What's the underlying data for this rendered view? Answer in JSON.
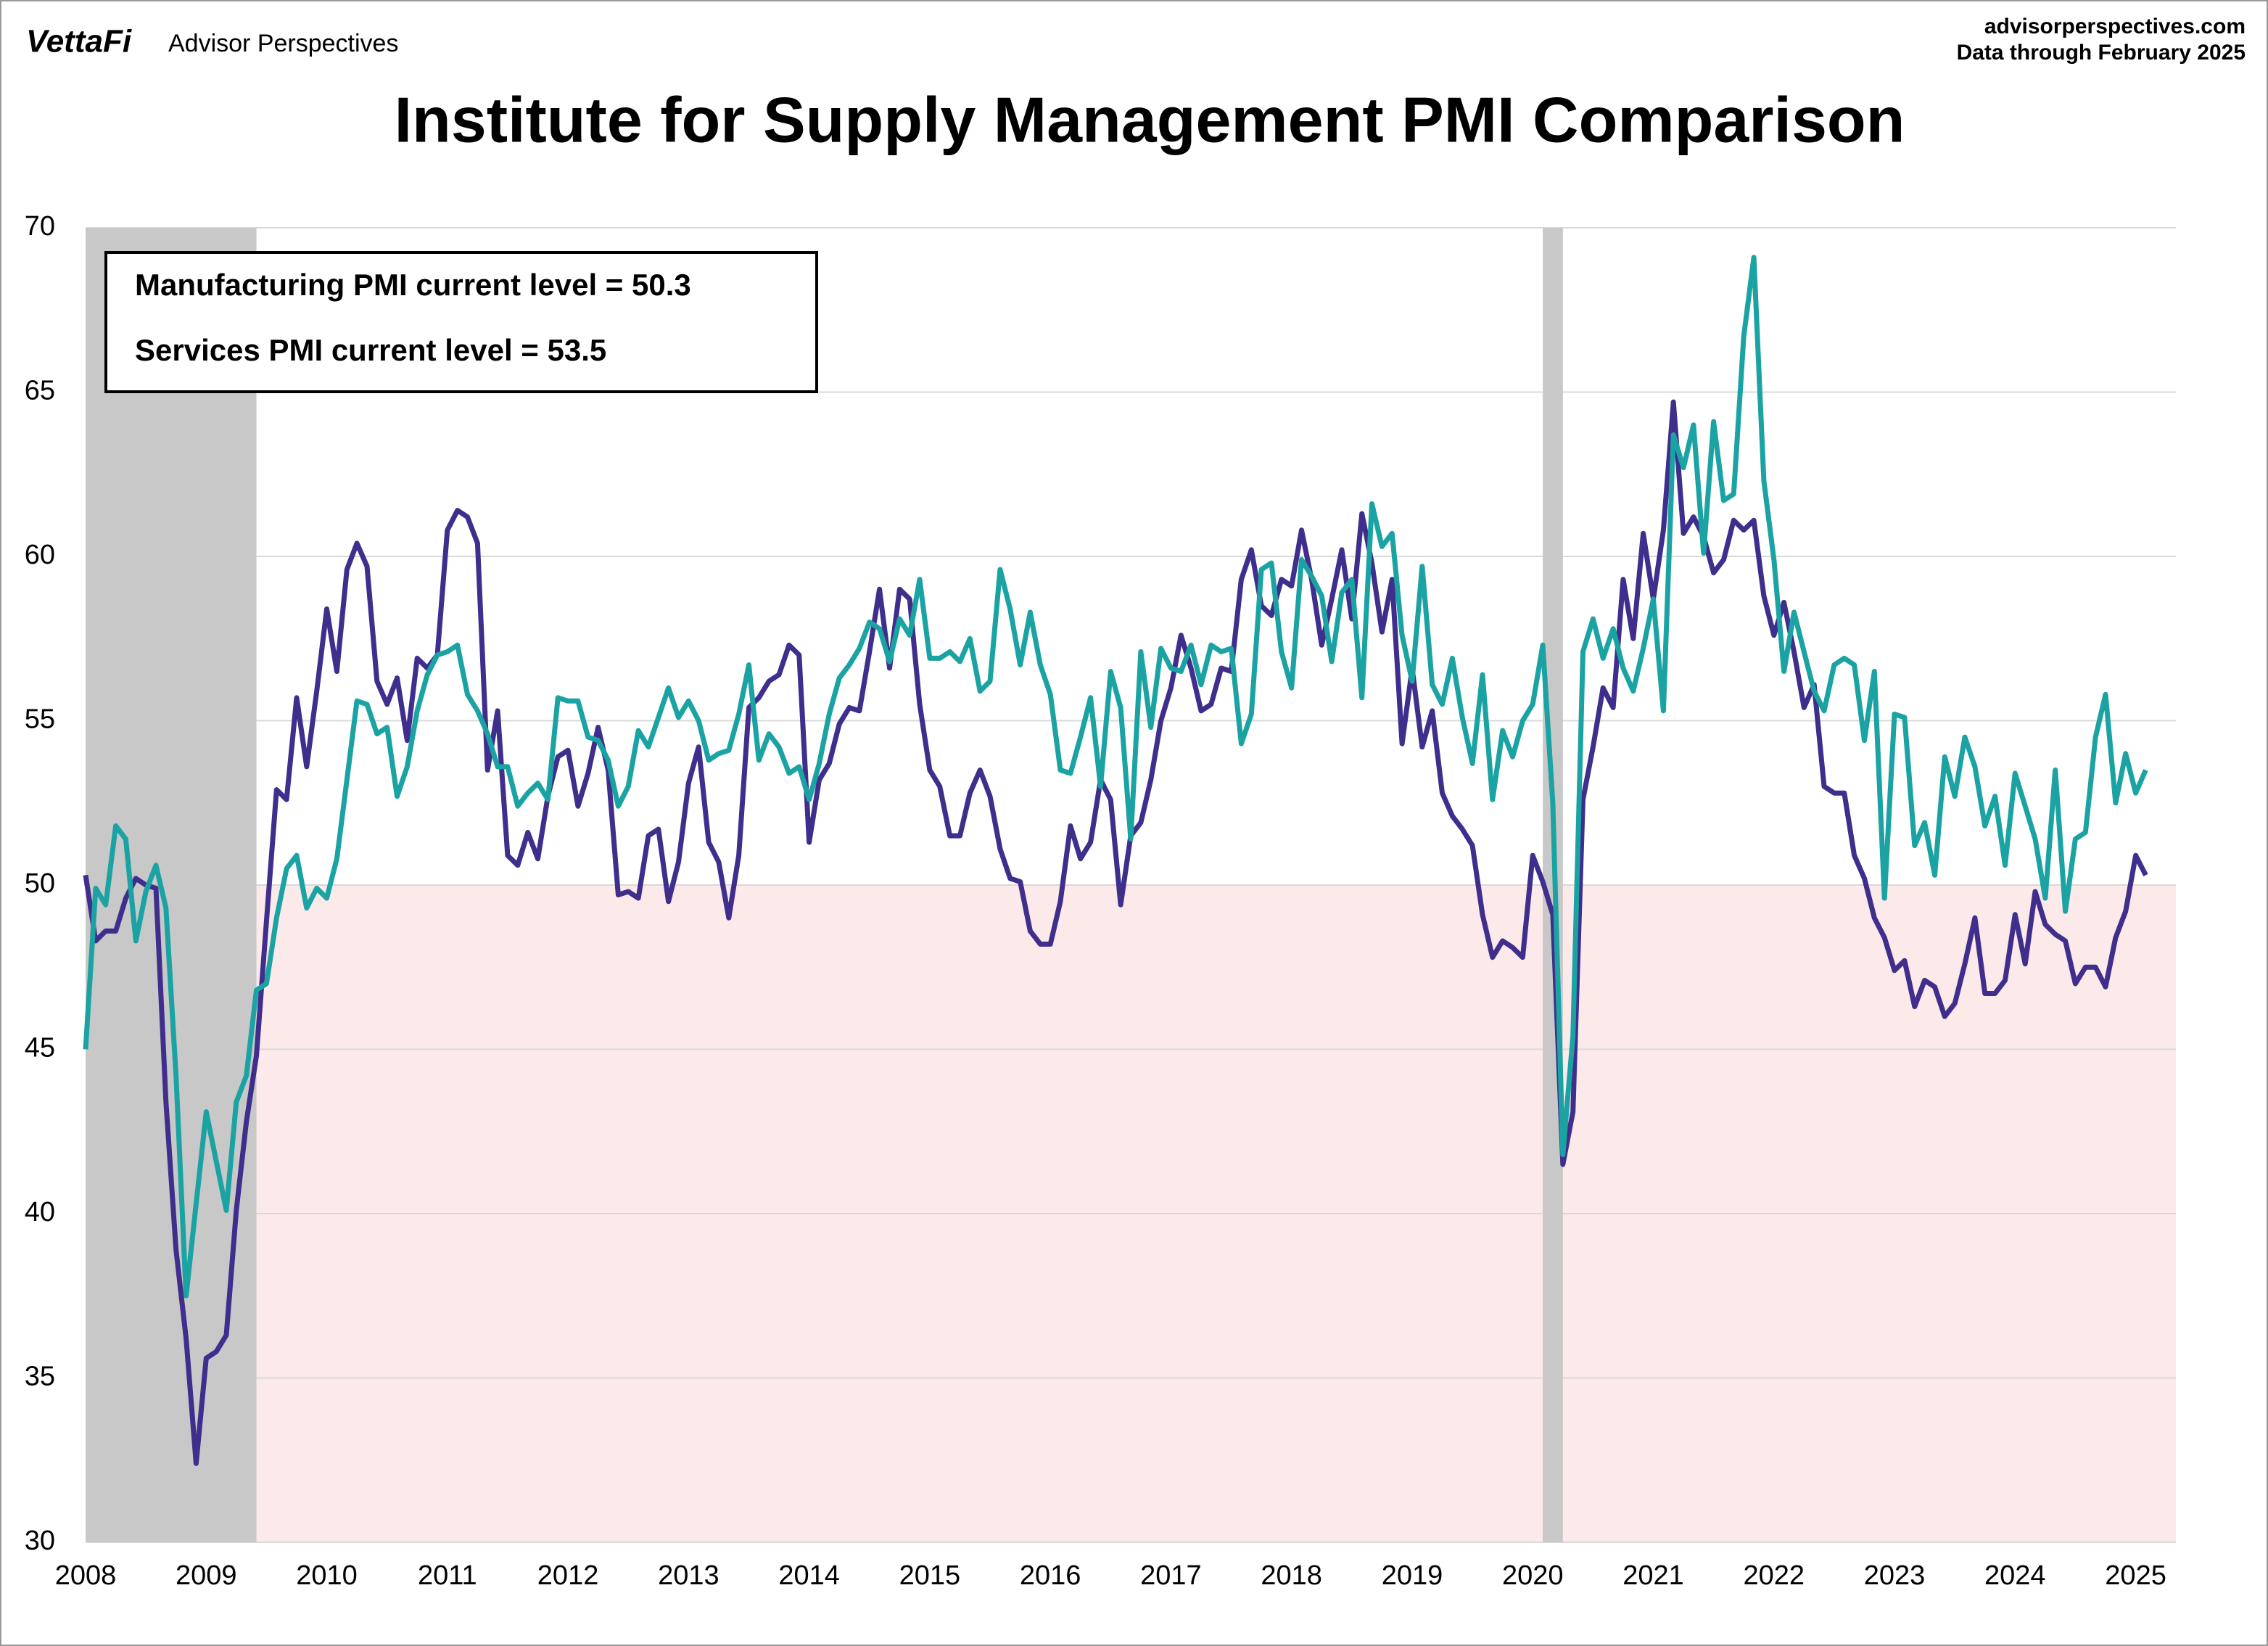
{
  "chart_data": {
    "type": "line",
    "brand": "VettaFi",
    "brand_sub": "Advisor Perspectives",
    "source": "advisorperspectives.com",
    "data_note": "Data through February 2025",
    "title": "Institute for Supply Management PMI Comparison",
    "annotations": [
      {
        "text": "Manufacturing PMI current level = 50.3",
        "color": "#3f2e8c"
      },
      {
        "text": "Services PMI current level = 53.5",
        "color": "#1ba3a3"
      }
    ],
    "categories": [
      "2008",
      null,
      null,
      null,
      null,
      null,
      null,
      null,
      null,
      null,
      null,
      null,
      "2009",
      null,
      null,
      null,
      null,
      null,
      null,
      null,
      null,
      null,
      null,
      null,
      "2010",
      null,
      null,
      null,
      null,
      null,
      null,
      null,
      null,
      null,
      null,
      null,
      "2011",
      null,
      null,
      null,
      null,
      null,
      null,
      null,
      null,
      null,
      null,
      null,
      "2012",
      null,
      null,
      null,
      null,
      null,
      null,
      null,
      null,
      null,
      null,
      null,
      "2013",
      null,
      null,
      null,
      null,
      null,
      null,
      null,
      null,
      null,
      null,
      null,
      "2014",
      null,
      null,
      null,
      null,
      null,
      null,
      null,
      null,
      null,
      null,
      null,
      "2015",
      null,
      null,
      null,
      null,
      null,
      null,
      null,
      null,
      null,
      null,
      null,
      "2016",
      null,
      null,
      null,
      null,
      null,
      null,
      null,
      null,
      null,
      null,
      null,
      "2017",
      null,
      null,
      null,
      null,
      null,
      null,
      null,
      null,
      null,
      null,
      null,
      "2018",
      null,
      null,
      null,
      null,
      null,
      null,
      null,
      null,
      null,
      null,
      null,
      "2019",
      null,
      null,
      null,
      null,
      null,
      null,
      null,
      null,
      null,
      null,
      null,
      "2020",
      null,
      null,
      null,
      null,
      null,
      null,
      null,
      null,
      null,
      null,
      null,
      "2021",
      null,
      null,
      null,
      null,
      null,
      null,
      null,
      null,
      null,
      null,
      null,
      "2022",
      null,
      null,
      null,
      null,
      null,
      null,
      null,
      null,
      null,
      null,
      null,
      "2023",
      null,
      null,
      null,
      null,
      null,
      null,
      null,
      null,
      null,
      null,
      null,
      "2024",
      null,
      null,
      null,
      null,
      null,
      null,
      null,
      null,
      null,
      null,
      null,
      "2025",
      null
    ],
    "series": [
      {
        "color": "#3f2e8c",
        "values": [
          50.3,
          48.3,
          48.6,
          48.6,
          49.6,
          50.2,
          50.0,
          49.9,
          43.4,
          38.9,
          36.2,
          32.4,
          35.6,
          35.8,
          36.3,
          40.1,
          42.8,
          44.8,
          48.9,
          52.9,
          52.6,
          55.7,
          53.6,
          55.9,
          58.4,
          56.5,
          59.6,
          60.4,
          59.7,
          56.2,
          55.5,
          56.3,
          54.4,
          56.9,
          56.6,
          57.0,
          60.8,
          61.4,
          61.2,
          60.4,
          53.5,
          55.3,
          50.9,
          50.6,
          51.6,
          50.8,
          52.7,
          53.9,
          54.1,
          52.4,
          53.4,
          54.8,
          53.5,
          49.7,
          49.8,
          49.6,
          51.5,
          51.7,
          49.5,
          50.7,
          53.1,
          54.2,
          51.3,
          50.7,
          49.0,
          50.9,
          55.4,
          55.7,
          56.2,
          56.4,
          57.3,
          57.0,
          51.3,
          53.2,
          53.7,
          54.9,
          55.4,
          55.3,
          57.1,
          59.0,
          56.6,
          59.0,
          58.7,
          55.5,
          53.5,
          53.0,
          51.5,
          51.5,
          52.8,
          53.5,
          52.7,
          51.1,
          50.2,
          50.1,
          48.6,
          48.2,
          48.2,
          49.5,
          51.8,
          50.8,
          51.3,
          53.2,
          52.6,
          49.4,
          51.5,
          51.9,
          53.2,
          55.0,
          56.0,
          57.6,
          56.6,
          55.3,
          55.5,
          56.6,
          56.5,
          59.3,
          60.2,
          58.5,
          58.2,
          59.3,
          59.1,
          60.8,
          59.3,
          57.3,
          58.7,
          60.2,
          58.1,
          61.3,
          59.8,
          57.7,
          59.3,
          54.3,
          56.6,
          54.2,
          55.3,
          52.8,
          52.1,
          51.7,
          51.2,
          49.1,
          47.8,
          48.3,
          48.1,
          47.8,
          50.9,
          50.1,
          49.1,
          41.5,
          43.1,
          52.6,
          54.2,
          56.0,
          55.4,
          59.3,
          57.5,
          60.7,
          58.7,
          60.8,
          64.7,
          60.7,
          61.2,
          60.6,
          59.5,
          59.9,
          61.1,
          60.8,
          61.1,
          58.8,
          57.6,
          58.6,
          57.1,
          55.4,
          56.1,
          53.0,
          52.8,
          52.8,
          50.9,
          50.2,
          49.0,
          48.4,
          47.4,
          47.7,
          46.3,
          47.1,
          46.9,
          46.0,
          46.4,
          47.6,
          49.0,
          46.7,
          46.7,
          47.1,
          49.1,
          47.6,
          49.8,
          48.8,
          48.5,
          48.3,
          47.0,
          47.5,
          47.5,
          46.9,
          48.4,
          49.2,
          50.9,
          50.3
        ]
      },
      {
        "color": "#1ba3a3",
        "values": [
          45.0,
          49.9,
          49.4,
          51.8,
          51.4,
          48.3,
          49.8,
          50.6,
          49.3,
          44.2,
          37.5,
          40.3,
          43.1,
          41.6,
          40.1,
          43.4,
          44.2,
          46.8,
          47.0,
          49.0,
          50.5,
          50.9,
          49.3,
          49.9,
          49.6,
          50.8,
          53.2,
          55.6,
          55.5,
          54.6,
          54.8,
          52.7,
          53.6,
          55.3,
          56.4,
          57.0,
          57.1,
          57.3,
          55.8,
          55.3,
          54.6,
          53.6,
          53.6,
          52.4,
          52.8,
          53.1,
          52.6,
          55.7,
          55.6,
          55.6,
          54.5,
          54.4,
          53.8,
          52.4,
          53.0,
          54.7,
          54.2,
          55.1,
          56.0,
          55.1,
          55.6,
          55.0,
          53.8,
          54.0,
          54.1,
          55.2,
          56.7,
          53.8,
          54.6,
          54.2,
          53.4,
          53.6,
          52.6,
          53.7,
          55.2,
          56.3,
          56.7,
          57.2,
          58.0,
          57.8,
          56.8,
          58.1,
          57.6,
          59.3,
          56.9,
          56.9,
          57.1,
          56.8,
          57.5,
          55.9,
          56.2,
          59.6,
          58.4,
          56.7,
          58.3,
          56.7,
          55.8,
          53.5,
          53.4,
          54.5,
          55.7,
          53.0,
          56.5,
          55.4,
          51.4,
          57.1,
          54.8,
          57.2,
          56.6,
          56.5,
          57.3,
          56.1,
          57.3,
          57.1,
          57.2,
          54.3,
          55.2,
          59.6,
          59.8,
          57.1,
          56.0,
          59.9,
          59.4,
          58.8,
          56.8,
          58.9,
          59.3,
          55.7,
          61.6,
          60.3,
          60.7,
          57.6,
          56.2,
          59.7,
          56.1,
          55.5,
          56.9,
          55.1,
          53.7,
          56.4,
          52.6,
          54.7,
          53.9,
          55.0,
          55.5,
          57.3,
          52.5,
          41.8,
          45.4,
          57.1,
          58.1,
          56.9,
          57.8,
          56.6,
          55.9,
          57.2,
          58.7,
          55.3,
          63.7,
          62.7,
          64.0,
          60.1,
          64.1,
          61.7,
          61.9,
          66.7,
          69.1,
          62.3,
          59.9,
          56.5,
          58.3,
          57.1,
          55.9,
          55.3,
          56.7,
          56.9,
          56.7,
          54.4,
          56.5,
          49.6,
          55.2,
          55.1,
          51.2,
          51.9,
          50.3,
          53.9,
          52.7,
          54.5,
          53.6,
          51.8,
          52.7,
          50.6,
          53.4,
          52.4,
          51.4,
          49.6,
          53.5,
          49.2,
          51.4,
          51.6,
          54.5,
          55.8,
          52.5,
          54.0,
          52.8,
          53.5
        ]
      }
    ],
    "recessions": [
      [
        0,
        17
      ],
      [
        145,
        147
      ]
    ],
    "recession_color": "#c8c8c8",
    "shade_below": 50,
    "shade_color": "#fce9ea",
    "ylim": [
      30,
      70
    ],
    "yticks": [
      30,
      35,
      40,
      45,
      50,
      55,
      60,
      65,
      70
    ],
    "grid": true
  }
}
